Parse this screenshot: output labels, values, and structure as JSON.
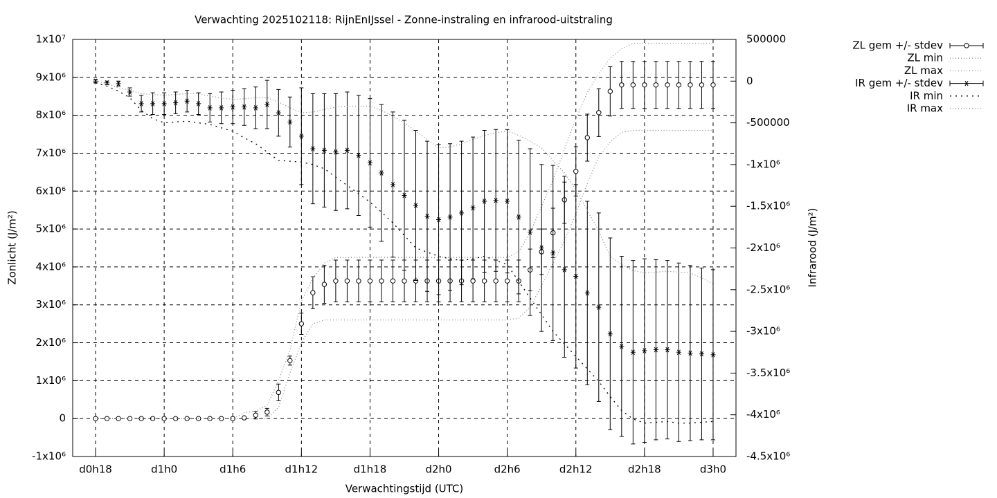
{
  "chart_data": {
    "type": "line",
    "title": "Verwachting 2025102118: RijnEnIJssel - Zonne-instraling en infrarood-uitstraling",
    "x_label": "Verwachtingstijd (UTC)",
    "y_label": "Zonlicht (J/m²)",
    "y2_label": "Infrarood (J/m²)",
    "grid": true,
    "legend": "top-right",
    "x": [
      18,
      19,
      20,
      21,
      22,
      23,
      24,
      25,
      26,
      27,
      28,
      29,
      30,
      31,
      32,
      33,
      34,
      35,
      36,
      37,
      38,
      39,
      40,
      41,
      42,
      43,
      44,
      45,
      46,
      47,
      48,
      49,
      50,
      51,
      52,
      53,
      54,
      55,
      56,
      57,
      58,
      59,
      60,
      61,
      62,
      63,
      64,
      65,
      66,
      67,
      68,
      69,
      70,
      71,
      72
    ],
    "xlim": [
      16,
      74
    ],
    "xticks": [
      {
        "value": 18,
        "label": "d0h18"
      },
      {
        "value": 24,
        "label": "d1h0"
      },
      {
        "value": 30,
        "label": "d1h6"
      },
      {
        "value": 36,
        "label": "d1h12"
      },
      {
        "value": 42,
        "label": "d1h18"
      },
      {
        "value": 48,
        "label": "d2h0"
      },
      {
        "value": 54,
        "label": "d2h6"
      },
      {
        "value": 60,
        "label": "d2h12"
      },
      {
        "value": 66,
        "label": "d2h18"
      },
      {
        "value": 72,
        "label": "d3h0"
      }
    ],
    "ylim": [
      -1000000,
      10000000
    ],
    "yticks": [
      {
        "value": -1000000,
        "label": "-1x10⁶"
      },
      0,
      {
        "value": 1000000,
        "label": "1x10⁶"
      },
      {
        "value": 2000000,
        "label": "2x10⁶"
      },
      {
        "value": 3000000,
        "label": "3x10⁶"
      },
      {
        "value": 4000000,
        "label": "4x10⁶"
      },
      {
        "value": 5000000,
        "label": "5x10⁶"
      },
      {
        "value": 6000000,
        "label": "6x10⁶"
      },
      {
        "value": 7000000,
        "label": "7x10⁶"
      },
      {
        "value": 8000000,
        "label": "8x10⁶"
      },
      {
        "value": 9000000,
        "label": "9x10⁶"
      },
      {
        "value": 10000000,
        "label": "1x10⁷"
      }
    ],
    "y2lim": [
      -4500000,
      500000
    ],
    "y2ticks": [
      {
        "value": -4500000,
        "label": "-4.5x10⁶"
      },
      {
        "value": -4000000,
        "label": "-4x10⁶"
      },
      {
        "value": -3500000,
        "label": "-3.5x10⁶"
      },
      {
        "value": -3000000,
        "label": "-3x10⁶"
      },
      {
        "value": -2500000,
        "label": "-2.5x10⁶"
      },
      {
        "value": -2000000,
        "label": "-2x10⁶"
      },
      {
        "value": -1500000,
        "label": "-1.5x10⁶"
      },
      {
        "value": -1000000,
        "label": "-1x10⁶"
      },
      -500000,
      0,
      500000
    ],
    "series": [
      {
        "name": "ZL gem +/- stdev",
        "color": "#000000",
        "axis": "y",
        "marker": "circle",
        "values": [
          0,
          0,
          0,
          0,
          0,
          0,
          0,
          0,
          0,
          0,
          0,
          0,
          0,
          20000,
          90000,
          170000,
          690000,
          1530000,
          2500000,
          3320000,
          3540000,
          3630000,
          3630000,
          3630000,
          3630000,
          3630000,
          3630000,
          3630000,
          3630000,
          3630000,
          3630000,
          3630000,
          3630000,
          3630000,
          3630000,
          3630000,
          3630000,
          3630000,
          3920000,
          4400000,
          4900000,
          5770000,
          6520000,
          7410000,
          8070000,
          8630000,
          8800000,
          8800000,
          8800000,
          8800000,
          8800000,
          8800000,
          8800000,
          8800000,
          8800000
        ],
        "errors": [
          0,
          0,
          0,
          0,
          0,
          0,
          0,
          0,
          0,
          0,
          0,
          0,
          0,
          20000,
          100000,
          100000,
          220000,
          120000,
          280000,
          420000,
          500000,
          550000,
          550000,
          550000,
          550000,
          550000,
          550000,
          550000,
          550000,
          550000,
          550000,
          550000,
          550000,
          550000,
          550000,
          550000,
          550000,
          550000,
          550000,
          600000,
          650000,
          620000,
          650000,
          620000,
          630000,
          650000,
          620000,
          620000,
          620000,
          620000,
          620000,
          620000,
          620000,
          620000,
          620000
        ]
      },
      {
        "name": "ZL min",
        "color": "#888888",
        "axis": "y",
        "dash": "fine",
        "values": [
          0,
          0,
          0,
          0,
          0,
          0,
          0,
          0,
          0,
          0,
          0,
          0,
          0,
          0,
          0,
          0,
          300000,
          1200000,
          2000000,
          2500000,
          2600000,
          2600000,
          2600000,
          2600000,
          2600000,
          2600000,
          2600000,
          2600000,
          2600000,
          2600000,
          2600000,
          2600000,
          2600000,
          2600000,
          2600000,
          2600000,
          2600000,
          2650000,
          2950000,
          3500000,
          4100000,
          4700000,
          5400000,
          6200000,
          6900000,
          7300000,
          7550000,
          7600000,
          7600000,
          7600000,
          7600000,
          7600000,
          7600000,
          7600000,
          7600000
        ]
      },
      {
        "name": "ZL max",
        "color": "#888888",
        "axis": "y",
        "dash": "fine",
        "values": [
          0,
          0,
          0,
          0,
          0,
          0,
          0,
          0,
          0,
          0,
          0,
          0,
          0,
          150000,
          200000,
          350000,
          1000000,
          1800000,
          3100000,
          3700000,
          4100000,
          4250000,
          4250000,
          4250000,
          4250000,
          4250000,
          4250000,
          4250000,
          4250000,
          4250000,
          4250000,
          4250000,
          4250000,
          4250000,
          4250000,
          4250000,
          4250000,
          4400000,
          4900000,
          5600000,
          6300000,
          7100000,
          7900000,
          8600000,
          9100000,
          9500000,
          9750000,
          9900000,
          9900000,
          9900000,
          9900000,
          9900000,
          9900000,
          9900000,
          9900000
        ]
      },
      {
        "name": "IR gem +/- stdev",
        "color": "#000000",
        "axis": "y2",
        "marker": "star",
        "values": [
          0,
          -20000,
          -30000,
          -130000,
          -270000,
          -270000,
          -270000,
          -260000,
          -240000,
          -270000,
          -320000,
          -320000,
          -310000,
          -310000,
          -320000,
          -280000,
          -380000,
          -490000,
          -660000,
          -810000,
          -830000,
          -850000,
          -830000,
          -890000,
          -980000,
          -1100000,
          -1240000,
          -1370000,
          -1490000,
          -1620000,
          -1660000,
          -1630000,
          -1580000,
          -1520000,
          -1440000,
          -1430000,
          -1440000,
          -1630000,
          -1810000,
          -2000000,
          -2060000,
          -2260000,
          -2340000,
          -2540000,
          -2710000,
          -3030000,
          -3180000,
          -3250000,
          -3230000,
          -3220000,
          -3220000,
          -3250000,
          -3260000,
          -3270000,
          -3280000
        ],
        "errors": [
          20000,
          20000,
          30000,
          50000,
          100000,
          130000,
          130000,
          130000,
          130000,
          130000,
          170000,
          190000,
          200000,
          220000,
          250000,
          290000,
          280000,
          300000,
          580000,
          660000,
          680000,
          700000,
          700000,
          720000,
          770000,
          820000,
          870000,
          900000,
          900000,
          900000,
          900000,
          880000,
          860000,
          850000,
          850000,
          850000,
          860000,
          920000,
          1000000,
          1000000,
          1050000,
          1050000,
          1100000,
          1100000,
          1130000,
          1150000,
          1080000,
          1100000,
          1100000,
          1080000,
          1070000,
          1070000,
          1050000,
          1030000,
          1020000
        ]
      },
      {
        "name": "IR min",
        "color": "#000000",
        "axis": "y2",
        "dash": "sparse",
        "values": [
          -20000,
          -60000,
          -120000,
          -200000,
          -350000,
          -450000,
          -500000,
          -490000,
          -480000,
          -500000,
          -520000,
          -560000,
          -600000,
          -680000,
          -750000,
          -850000,
          -950000,
          -960000,
          -970000,
          -1000000,
          -1050000,
          -1150000,
          -1250000,
          -1350000,
          -1450000,
          -1570000,
          -1700000,
          -1850000,
          -2000000,
          -2050000,
          -2100000,
          -2130000,
          -2150000,
          -2130000,
          -2100000,
          -2150000,
          -2200000,
          -2400000,
          -2600000,
          -2800000,
          -3000000,
          -3150000,
          -3300000,
          -3450000,
          -3600000,
          -3780000,
          -3950000,
          -4050000,
          -4100000,
          -4090000,
          -4080000,
          -4100000,
          -4100000,
          -4090000,
          -4080000
        ]
      },
      {
        "name": "IR max",
        "color": "#888888",
        "axis": "y2",
        "dash": "fine",
        "values": [
          0,
          -30000,
          -80000,
          -110000,
          -150000,
          -160000,
          -170000,
          -160000,
          -150000,
          -150000,
          -180000,
          -200000,
          -220000,
          -210000,
          -200000,
          -200000,
          -250000,
          -320000,
          -380000,
          -370000,
          -340000,
          -310000,
          -300000,
          -300000,
          -300000,
          -350000,
          -420000,
          -500000,
          -600000,
          -700000,
          -800000,
          -790000,
          -750000,
          -700000,
          -650000,
          -620000,
          -600000,
          -650000,
          -720000,
          -800000,
          -950000,
          -1100000,
          -1300000,
          -1550000,
          -1800000,
          -2100000,
          -2200000,
          -2270000,
          -2300000,
          -2290000,
          -2280000,
          -2290000,
          -2300000,
          -2360000,
          -2430000
        ]
      }
    ]
  }
}
